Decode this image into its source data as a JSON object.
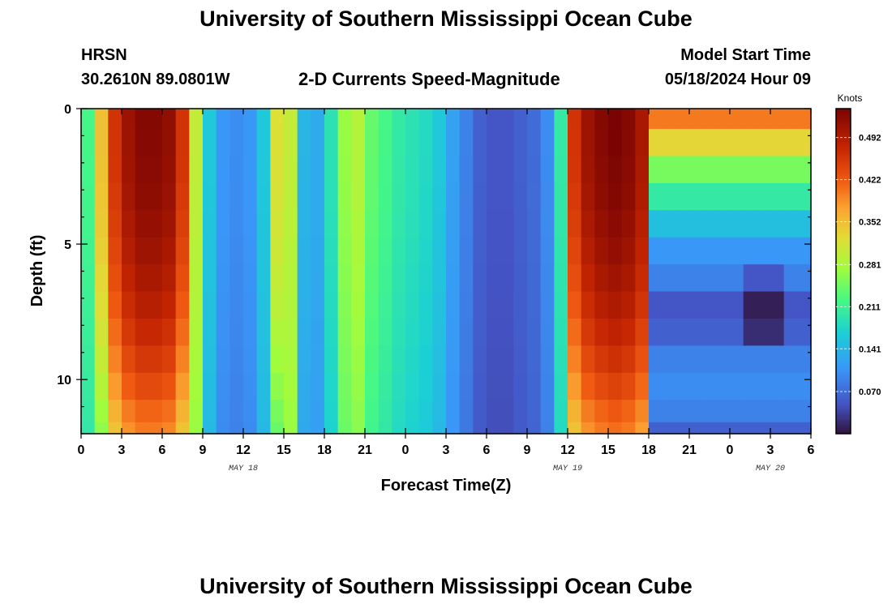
{
  "header": {
    "title": "University of Southern Mississippi Ocean Cube",
    "station": "HRSN",
    "coordinates": "30.2610N  89.0801W",
    "subtitle": "2-D Currents Speed-Magnitude",
    "model_label": "Model Start Time",
    "model_time": "05/18/2024 Hour 09"
  },
  "footer": {
    "title": "University of Southern Mississippi Ocean Cube"
  },
  "chart_data": {
    "type": "heatmap",
    "title": "2-D Currents Speed-Magnitude",
    "xlabel": "Forecast Time(Z)",
    "ylabel": "Depth (ft)",
    "colorbar_label": "Knots",
    "colorbar_ticks": [
      0.07,
      0.141,
      0.211,
      0.281,
      0.352,
      0.422,
      0.492
    ],
    "colorbar_range": [
      0.0,
      0.54
    ],
    "ylim": [
      0,
      12
    ],
    "yticks": [
      0,
      5,
      10
    ],
    "x_tick_labels": [
      "0",
      "3",
      "6",
      "9",
      "12",
      "15",
      "18",
      "21",
      "0",
      "3",
      "6",
      "9",
      "12",
      "15",
      "18",
      "21",
      "0",
      "3",
      "6"
    ],
    "x_hours": [
      0,
      54
    ],
    "date_labels": [
      {
        "label": "MAY 18",
        "hour": 12
      },
      {
        "label": "MAY 19",
        "hour": 36
      },
      {
        "label": "MAY 20",
        "hour": 51
      }
    ],
    "depth_rows_ft": [
      0.25,
      1.25,
      2.25,
      3.25,
      4.25,
      5.25,
      6.25,
      7.25,
      8.25,
      9.25,
      10.25,
      11.25,
      11.9
    ],
    "time_profile_knots": [
      0.22,
      0.35,
      0.46,
      0.51,
      0.53,
      0.53,
      0.52,
      0.46,
      0.3,
      0.16,
      0.11,
      0.1,
      0.11,
      0.16,
      0.32,
      0.3,
      0.14,
      0.13,
      0.19,
      0.27,
      0.29,
      0.24,
      0.22,
      0.2,
      0.19,
      0.18,
      0.16,
      0.12,
      0.09,
      0.06,
      0.05,
      0.05,
      0.06,
      0.07,
      0.1,
      0.2,
      0.46,
      0.51,
      0.53,
      0.54,
      0.53,
      0.5,
      0.42,
      0.4,
      0.4,
      0.4,
      0.4,
      0.4,
      0.4,
      0.4,
      0.4,
      0.4,
      0.4,
      0.4
    ],
    "right_block_profile_by_depth": [
      0.4,
      0.33,
      0.25,
      0.2,
      0.15,
      0.11,
      0.09,
      0.05,
      0.06,
      0.09,
      0.1,
      0.09,
      0.06
    ]
  }
}
